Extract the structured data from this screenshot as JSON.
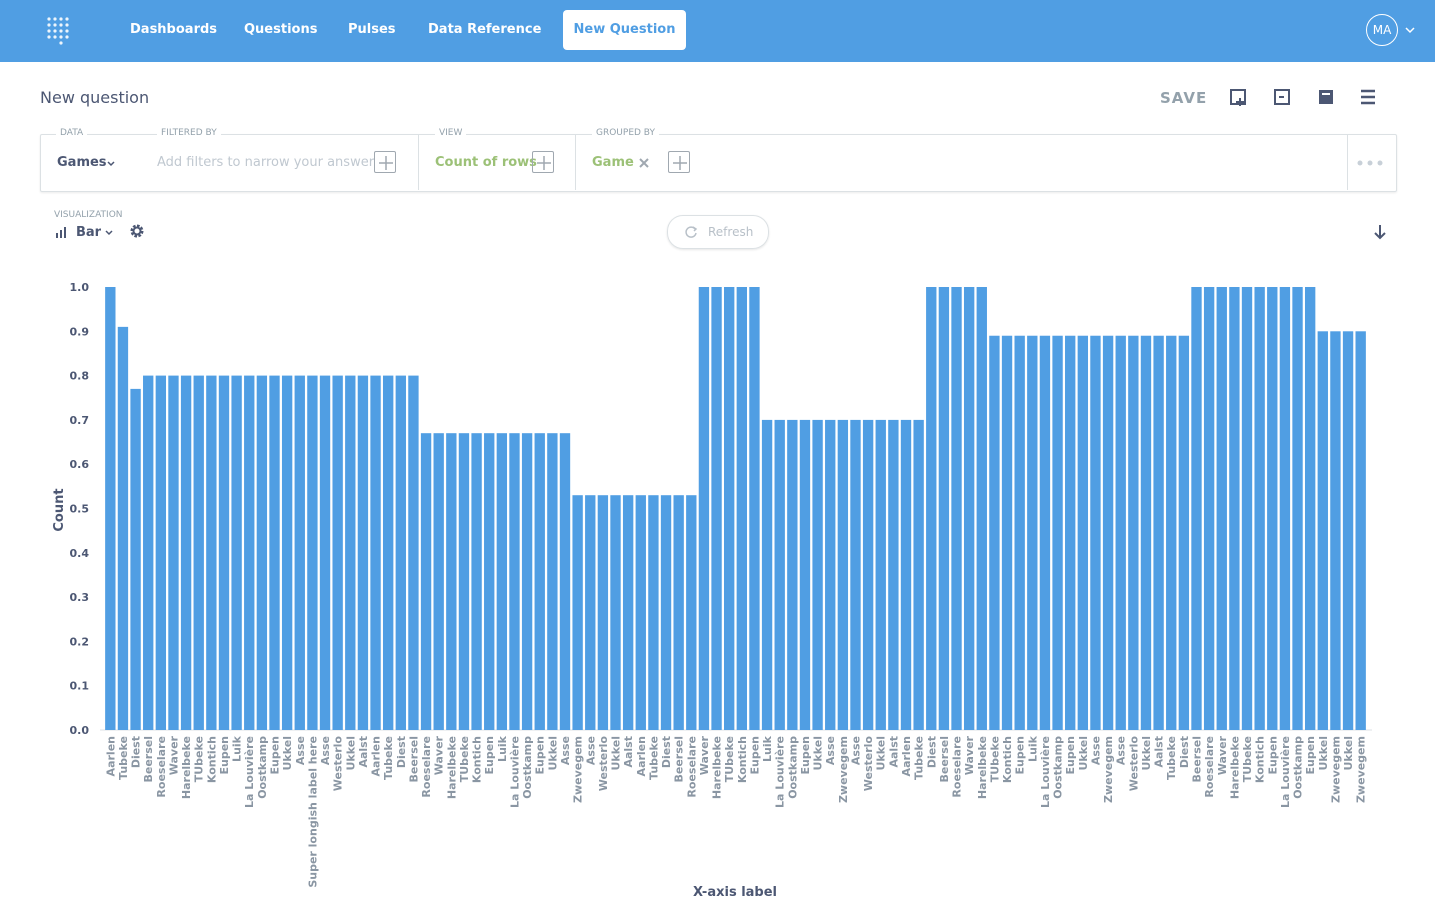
{
  "nav": {
    "items": [
      "Dashboards",
      "Questions",
      "Pulses",
      "Data Reference"
    ],
    "new_question": "New Question",
    "avatar": "MA"
  },
  "header": {
    "title": "New question",
    "save": "SAVE"
  },
  "query": {
    "data_label": "DATA",
    "data_value": "Games",
    "filter_label": "FILTERED BY",
    "filter_placeholder": "Add filters to narrow your answer",
    "view_label": "VIEW",
    "view_value": "Count of rows",
    "group_label": "GROUPED BY",
    "group_value": "Game"
  },
  "visualization": {
    "label": "VISUALIZATION",
    "value": "Bar",
    "refresh": "Refresh"
  },
  "chart_data": {
    "type": "bar",
    "color": "#509ee3",
    "y_label": "Count",
    "x_label": "X-axis label",
    "ylim": [
      0,
      1
    ],
    "yticks": [
      {
        "value": 0,
        "label": "0.0"
      },
      0.1,
      0.2,
      0.3,
      0.4,
      0.5,
      0.6,
      0.7,
      0.8,
      0.9,
      {
        "value": 1,
        "label": "1.0"
      }
    ],
    "categories": [
      "Aarlen",
      "Tubeke",
      "Diest",
      "Beersel",
      "Roeselare",
      "Waver",
      "Harelbeke",
      "TUbeke",
      "Kontich",
      "Eupen",
      "Luik",
      "La Louvière",
      "Oostkamp",
      "Eupen",
      "Ukkel",
      "Asse",
      "Super longish label here",
      "Asse",
      "Westerlo",
      "Ukkel",
      "Aalst",
      "Aarlen",
      "Tubeke",
      "Diest",
      "Beersel",
      "Roeselare",
      "Waver",
      "Harelbeke",
      "TUbeke",
      "Kontich",
      "Eupen",
      "Luik",
      "La Louvière",
      "Oostkamp",
      "Eupen",
      "Ukkel",
      "Asse",
      "Zwevegem",
      "Asse",
      "Westerlo",
      "Ukkel",
      "Aalst",
      "Aarlen",
      "Tubeke",
      "Diest",
      "Beersel",
      "Roeselare",
      "Waver",
      "Harelbeke",
      "TUbeke",
      "Kontich",
      "Eupen",
      "Luik",
      "La Louvière",
      "Oostkamp",
      "Eupen",
      "Ukkel",
      "Asse",
      "Zwevegem",
      "Asse",
      "Westerlo",
      "Ukkel",
      "Aalst",
      "Aarlen",
      "Tubeke",
      "Diest",
      "Beersel",
      "Roeselare",
      "Waver",
      "Harelbeke",
      "TUbeke",
      "Kontich",
      "Eupen",
      "Luik",
      "La Louvière",
      "Oostkamp",
      "Eupen",
      "Ukkel",
      "Asse",
      "Zwevegem",
      "Asse",
      "Westerlo",
      "Ukkel",
      "Aalst",
      "Tubeke",
      "Diest",
      "Beersel",
      "Roeselare",
      "Waver",
      "Harelbeke",
      "TUbeke",
      "Kontich",
      "Eupen",
      "La Louvière",
      "Oostkamp",
      "Eupen",
      "Ukkel",
      "Zwevegem",
      "Ukkel",
      "Zwevegem"
    ],
    "values": [
      1,
      0.91,
      0.77,
      0.8,
      0.8,
      0.8,
      0.8,
      0.8,
      0.8,
      0.8,
      0.8,
      0.8,
      0.8,
      0.8,
      0.8,
      0.8,
      0.8,
      0.8,
      0.8,
      0.8,
      0.8,
      0.8,
      0.8,
      0.8,
      0.8,
      0.67,
      0.67,
      0.67,
      0.67,
      0.67,
      0.67,
      0.67,
      0.67,
      0.67,
      0.67,
      0.67,
      0.67,
      0.53,
      0.53,
      0.53,
      0.53,
      0.53,
      0.53,
      0.53,
      0.53,
      0.53,
      0.53,
      1,
      1,
      1,
      1,
      1,
      0.7,
      0.7,
      0.7,
      0.7,
      0.7,
      0.7,
      0.7,
      0.7,
      0.7,
      0.7,
      0.7,
      0.7,
      0.7,
      1,
      1,
      1,
      1,
      1,
      0.89,
      0.89,
      0.89,
      0.89,
      0.89,
      0.89,
      0.89,
      0.89,
      0.89,
      0.89,
      0.89,
      0.89,
      0.89,
      0.89,
      0.89,
      0.89,
      1,
      1,
      1,
      1,
      1,
      1,
      1,
      1,
      1,
      1,
      0.9,
      0.9,
      0.9,
      0.9
    ]
  }
}
